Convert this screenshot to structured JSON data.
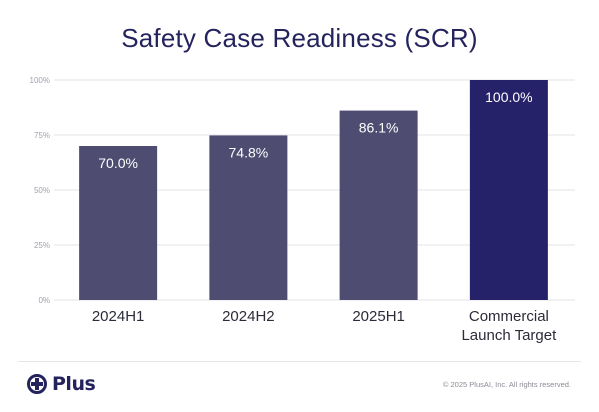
{
  "title": "Safety Case Readiness (SCR)",
  "brand": {
    "logo_text": "Plus",
    "logo_icon": "plus-logo-icon",
    "color": "#25235e"
  },
  "footer": {
    "copyright": "© 2025 PlusAI, Inc. All rights reserved."
  },
  "colors": {
    "bar": "#4e4c70",
    "bar_highlight": "#25226a",
    "grid": "#e3e3e8",
    "axis_text": "#a0a0aa",
    "category_text": "#2b2b3a",
    "value_label": "#ffffff"
  },
  "chart_data": {
    "type": "bar",
    "title": "Safety Case Readiness (SCR)",
    "categories": [
      [
        "2024H1"
      ],
      [
        "2024H2"
      ],
      [
        "2025H1"
      ],
      [
        "Commercial",
        "Launch Target"
      ]
    ],
    "values": [
      70.0,
      74.8,
      86.1,
      100.0
    ],
    "value_labels": [
      "70.0%",
      "74.8%",
      "86.1%",
      "100.0%"
    ],
    "highlight_index": 3,
    "ylim": [
      0,
      100
    ],
    "yticks": [
      0,
      25,
      50,
      75,
      100
    ],
    "ytick_labels": [
      "0%",
      "25%",
      "50%",
      "75%",
      "100%"
    ],
    "grid": true,
    "xlabel": "",
    "ylabel": ""
  }
}
